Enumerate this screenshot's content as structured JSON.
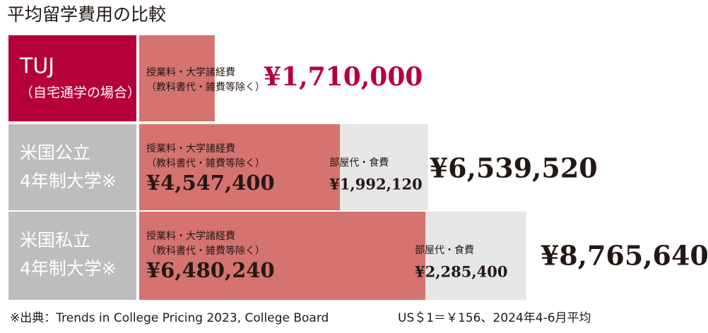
{
  "chart_data": {
    "type": "stacked-bar-horizontal",
    "title": "平均留学費用の比較",
    "categories": [
      [
        "TUJ",
        "（自宅通学の場合）"
      ],
      [
        "米国公立",
        "4年制大学※"
      ],
      [
        "米国私立",
        "4年制大学※"
      ]
    ],
    "category_colors": [
      "#b5003a",
      "#bdbdbd",
      "#bdbdbd"
    ],
    "series": [
      {
        "name": "授業料・大学諸経費（教科書代・雑費等除く）",
        "color": "#d47370",
        "values": [
          1710000,
          4547400,
          6480240
        ],
        "value_labels": [
          null,
          "¥4,547,400",
          "¥6,480,240"
        ]
      },
      {
        "name": "部屋代・食費",
        "color": "#e6e6e6",
        "values": [
          null,
          1992120,
          2285400
        ],
        "value_labels": [
          null,
          "¥1,992,120",
          "¥2,285,400"
        ]
      }
    ],
    "totals": [
      1710000,
      6539520,
      8765640
    ],
    "total_labels": [
      "¥1,710,000",
      "¥6,539,520",
      "¥8,765,640"
    ],
    "total_colors": [
      "#b5003a",
      "#231815",
      "#231815"
    ],
    "notes": [
      "※出典：Trends in College Pricing 2023, College Board",
      "US＄1＝￥156、2024年4-6月平均"
    ]
  }
}
